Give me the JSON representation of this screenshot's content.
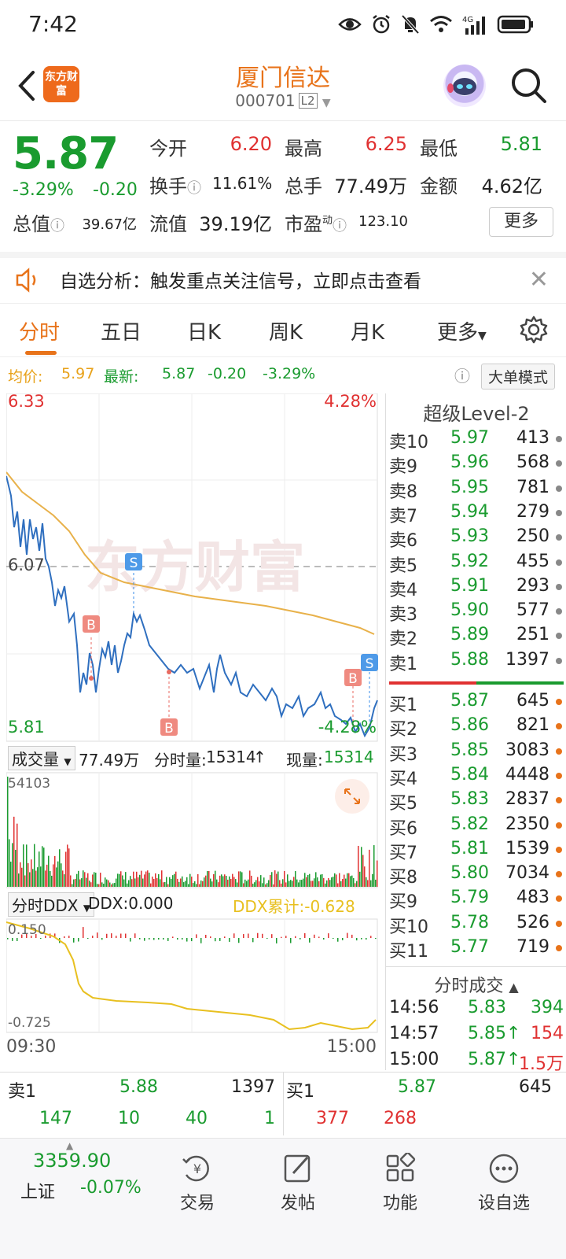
{
  "status_bar": {
    "time": "7:42",
    "network": "4G"
  },
  "header": {
    "stock_name": "厦门信达",
    "stock_code": "000701",
    "level_badge": "L2",
    "logo_text": "东方财富"
  },
  "quote": {
    "price": "5.87",
    "change_pct": "-3.29%",
    "change": "-0.20",
    "open_label": "今开",
    "open": "6.20",
    "high_label": "最高",
    "high": "6.25",
    "low_label": "最低",
    "low": "5.81",
    "turnover_label": "换手",
    "turnover": "11.61%",
    "volume_label": "总手",
    "volume": "77.49万",
    "amount_label": "金额",
    "amount": "4.62亿",
    "mktcap_label": "总值",
    "mktcap": "39.67亿",
    "float_label": "流值",
    "float": "39.19亿",
    "pe_label": "市盈",
    "pe_sup": "动",
    "pe": "123.10",
    "more_button": "更多"
  },
  "alert": {
    "text": "自选分析：触发重点关注信号，立即点击查看"
  },
  "tabs": [
    "分时",
    "五日",
    "日K",
    "周K",
    "月K",
    "更多"
  ],
  "avg_row": {
    "avg_label": "均价:",
    "avg": "5.97",
    "latest_label": "最新:",
    "latest": "5.87",
    "change": "-0.20",
    "change_pct": "-3.29%",
    "big_mode": "大单模式"
  },
  "chart": {
    "price_high": "6.33",
    "price_high_pct": "4.28%",
    "price_mid": "6.07",
    "price_low": "5.81",
    "price_low_pct": "-4.28%",
    "watermark": "东方财富",
    "markers": [
      "S",
      "B",
      "B",
      "B",
      "S"
    ],
    "volume_label": "成交量",
    "volume_total": "77.49万",
    "tick_vol_label": "分时量:",
    "tick_vol": "15314",
    "cur_vol_label": "现量:",
    "cur_vol": "15314",
    "vol_max": "54103",
    "ddx_label": "分时DDX",
    "ddx": "DDX:0.000",
    "ddx_cum": "DDX累计:-0.628",
    "ddx_top": "0.150",
    "ddx_bottom": "-0.725",
    "time_start": "09:30",
    "time_end": "15:00"
  },
  "orderbook": {
    "title": "超级Level-2",
    "asks": [
      {
        "label": "卖10",
        "price": "5.97",
        "vol": "413"
      },
      {
        "label": "卖9",
        "price": "5.96",
        "vol": "568"
      },
      {
        "label": "卖8",
        "price": "5.95",
        "vol": "781"
      },
      {
        "label": "卖7",
        "price": "5.94",
        "vol": "279"
      },
      {
        "label": "卖6",
        "price": "5.93",
        "vol": "250"
      },
      {
        "label": "卖5",
        "price": "5.92",
        "vol": "455"
      },
      {
        "label": "卖4",
        "price": "5.91",
        "vol": "293"
      },
      {
        "label": "卖3",
        "price": "5.90",
        "vol": "577"
      },
      {
        "label": "卖2",
        "price": "5.89",
        "vol": "251"
      },
      {
        "label": "卖1",
        "price": "5.88",
        "vol": "1397"
      }
    ],
    "bids": [
      {
        "label": "买1",
        "price": "5.87",
        "vol": "645"
      },
      {
        "label": "买2",
        "price": "5.86",
        "vol": "821"
      },
      {
        "label": "买3",
        "price": "5.85",
        "vol": "3083"
      },
      {
        "label": "买4",
        "price": "5.84",
        "vol": "4448"
      },
      {
        "label": "买5",
        "price": "5.83",
        "vol": "2837"
      },
      {
        "label": "买6",
        "price": "5.82",
        "vol": "2350"
      },
      {
        "label": "买7",
        "price": "5.81",
        "vol": "1539"
      },
      {
        "label": "买8",
        "price": "5.80",
        "vol": "7034"
      },
      {
        "label": "买9",
        "price": "5.79",
        "vol": "483"
      },
      {
        "label": "买10",
        "price": "5.78",
        "vol": "526"
      },
      {
        "label": "买11",
        "price": "5.77",
        "vol": "719"
      }
    ],
    "ticks_title": "分时成交",
    "ticks": [
      {
        "time": "14:56",
        "price": "5.83",
        "vol": "394"
      },
      {
        "time": "14:57",
        "price": "5.85↑",
        "vol": "154"
      },
      {
        "time": "15:00",
        "price": "5.87↑",
        "vol": "1.5万"
      }
    ]
  },
  "summary": {
    "sell1_label": "卖1",
    "sell1_price": "5.88",
    "sell1_vol": "1397",
    "buy1_label": "买1",
    "buy1_price": "5.87",
    "buy1_vol": "645",
    "sell_queue": [
      "147",
      "10",
      "40",
      "1"
    ],
    "buy_queue": [
      "377",
      "268"
    ]
  },
  "bottom_nav": {
    "index_value": "3359.90",
    "index_name": "上证",
    "index_change": "-0.07%",
    "items": [
      "交易",
      "发帖",
      "功能",
      "设自选"
    ]
  },
  "colors": {
    "up": "#e03131",
    "down": "#1a9b2f",
    "accent": "#e8731a",
    "avg_line": "#e8b14a",
    "price_line": "#2f6fbf"
  }
}
